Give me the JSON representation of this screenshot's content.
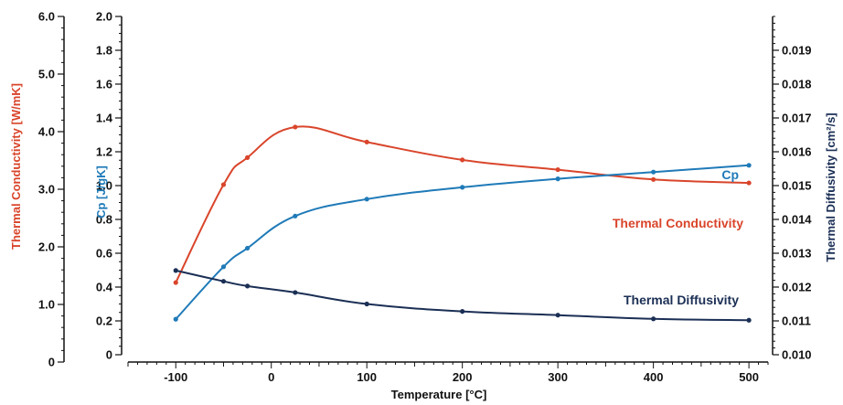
{
  "colors": {
    "thermal_conductivity": "#d9452b",
    "cp": "#1f7ab8",
    "thermal_diffusivity": "#1b2f55",
    "axis": "#111111"
  },
  "chart_data": {
    "type": "line",
    "x_axis": {
      "label": "Temperature [°C]",
      "range": [
        -150,
        520
      ],
      "ticks": [
        -100,
        0,
        100,
        200,
        300,
        400,
        500
      ],
      "tick_labels": [
        "-100",
        "0",
        "100",
        "200",
        "300",
        "400",
        "500"
      ]
    },
    "y_axes": [
      {
        "id": "tc",
        "label": "Thermal Conductivity [W/mK]",
        "range": [
          0,
          6.0
        ],
        "ticks": [
          0,
          1.0,
          2.0,
          3.0,
          4.0,
          5.0,
          6.0
        ],
        "tick_labels": [
          "0",
          "1.0",
          "2.0",
          "3.0",
          "4.0",
          "5.0",
          "6.0"
        ]
      },
      {
        "id": "cp",
        "label": "Cp [J/gK]",
        "range": [
          0,
          2.0
        ],
        "ticks": [
          0,
          0.2,
          0.4,
          0.6,
          0.8,
          1.0,
          1.2,
          1.4,
          1.6,
          1.8,
          2.0
        ],
        "tick_labels": [
          "0",
          "0.2",
          "0.4",
          "0.6",
          "0.8",
          "1.0",
          "1.2",
          "1.4",
          "1.6",
          "1.8",
          "2.0"
        ]
      },
      {
        "id": "td",
        "label": "Thermal Diffusivity [cm²/s]",
        "range": [
          0.01,
          0.02
        ],
        "ticks": [
          0.01,
          0.011,
          0.012,
          0.013,
          0.014,
          0.015,
          0.016,
          0.017,
          0.018,
          0.019
        ],
        "tick_labels": [
          "0.010",
          "0.011",
          "0.012",
          "0.013",
          "0.014",
          "0.015",
          "0.016",
          "0.017",
          "0.018",
          "0.019"
        ]
      }
    ],
    "series": [
      {
        "name": "Thermal Conductivity",
        "axis": "tc",
        "x": [
          -100,
          -50,
          -25,
          25,
          100,
          200,
          300,
          400,
          500
        ],
        "y": [
          1.38,
          3.08,
          3.55,
          4.08,
          3.82,
          3.51,
          3.34,
          3.17,
          3.11
        ]
      },
      {
        "name": "Cp",
        "axis": "cp",
        "x": [
          -100,
          -50,
          -25,
          25,
          100,
          200,
          300,
          400,
          500
        ],
        "y": [
          0.21,
          0.52,
          0.63,
          0.82,
          0.92,
          0.99,
          1.04,
          1.08,
          1.12
        ]
      },
      {
        "name": "Thermal Diffusivity",
        "axis": "td",
        "x": [
          -100,
          -50,
          -25,
          25,
          100,
          200,
          300,
          400,
          500
        ],
        "y": [
          0.01249,
          0.01217,
          0.01203,
          0.01184,
          0.0115,
          0.01128,
          0.01117,
          0.01106,
          0.01102
        ]
      }
    ],
    "grid": false
  }
}
